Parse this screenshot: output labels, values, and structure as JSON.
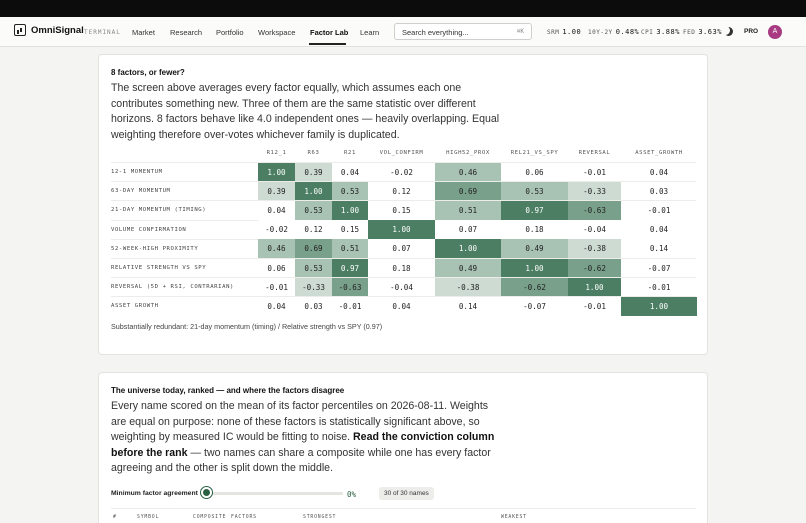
{
  "app": {
    "name": "OmniSignal",
    "section_tag": "TERMINAL"
  },
  "nav": {
    "items": [
      "Market",
      "Research",
      "Portfolio",
      "Workspace",
      "Factor Lab",
      "Learn"
    ],
    "active": "Factor Lab"
  },
  "search": {
    "placeholder": "Search everything...",
    "shortcut": "⌘K"
  },
  "tickers": [
    {
      "label": "SRM",
      "value": "1.00"
    },
    {
      "label": "10Y-2Y",
      "value": "0.48%"
    },
    {
      "label": "CPI",
      "value": "3.88%"
    },
    {
      "label": "FED",
      "value": "3.63%"
    }
  ],
  "user": {
    "plan": "PRO",
    "initial": "A"
  },
  "factors_card": {
    "title": "8 factors, or fewer?",
    "body": "The screen above averages every factor equally, which assumes each one contributes something new. Three of them are the same statistic over different horizons. 8 factors behave like 4.0 independent ones — heavily overlapping. Equal weighting therefore over-votes whichever family is duplicated.",
    "columns": [
      "R12_1",
      "R63",
      "R21",
      "VOL_CONFIRM",
      "HIGH52_PROX",
      "REL21_VS_SPY",
      "REVERSAL",
      "ASSET_GROWTH"
    ],
    "rows": [
      {
        "label": "12-1 MOMENTUM",
        "values": [
          "1.00",
          "0.39",
          "0.04",
          "-0.02",
          "0.46",
          "0.06",
          "-0.01",
          "0.04"
        ]
      },
      {
        "label": "63-DAY MOMENTUM",
        "values": [
          "0.39",
          "1.00",
          "0.53",
          "0.12",
          "0.69",
          "0.53",
          "-0.33",
          "0.03"
        ]
      },
      {
        "label": "21-DAY MOMENTUM (TIMING)",
        "values": [
          "0.04",
          "0.53",
          "1.00",
          "0.15",
          "0.51",
          "0.97",
          "-0.63",
          "-0.01"
        ]
      },
      {
        "label": "VOLUME CONFIRMATION",
        "values": [
          "-0.02",
          "0.12",
          "0.15",
          "1.00",
          "0.07",
          "0.18",
          "-0.04",
          "0.04"
        ]
      },
      {
        "label": "52-WEEK-HIGH PROXIMITY",
        "values": [
          "0.46",
          "0.69",
          "0.51",
          "0.07",
          "1.00",
          "0.49",
          "-0.38",
          "0.14"
        ]
      },
      {
        "label": "RELATIVE STRENGTH VS SPY",
        "values": [
          "0.06",
          "0.53",
          "0.97",
          "0.18",
          "0.49",
          "1.00",
          "-0.62",
          "-0.07"
        ]
      },
      {
        "label": "REVERSAL (5D + RSI, CONTRARIAN)",
        "values": [
          "-0.01",
          "-0.33",
          "-0.63",
          "-0.04",
          "-0.38",
          "-0.62",
          "1.00",
          "-0.01"
        ]
      },
      {
        "label": "ASSET GROWTH",
        "values": [
          "0.04",
          "0.03",
          "-0.01",
          "0.04",
          "0.14",
          "-0.07",
          "-0.01",
          "1.00"
        ]
      }
    ],
    "footnote": "Substantially redundant: 21-day momentum (timing) / Relative strength vs SPY (0.97)"
  },
  "universe_card": {
    "title": "The universe today, ranked — and where the factors disagree",
    "body_pre": "Every name scored on the mean of its factor percentiles on 2026-08-11. Weights are equal on purpose: none of these factors is statistically significant above, so weighting by measured IC would be fitting to noise. ",
    "body_strong": "Read the conviction column before the rank",
    "body_post": " — two names can share a composite while one has every factor agreeing and the other is split down the middle.",
    "slider_label": "Minimum factor agreement",
    "slider_value": "0%",
    "slider_fraction": 0,
    "count": "30 of 30 names",
    "table_headers": [
      "#",
      "SYMBOL",
      "COMPOSITE",
      "FACTORS",
      "STRONGEST",
      "WEAKEST"
    ]
  },
  "colors": {
    "accent": "#2a5f42",
    "avatar": "#a83a82"
  }
}
